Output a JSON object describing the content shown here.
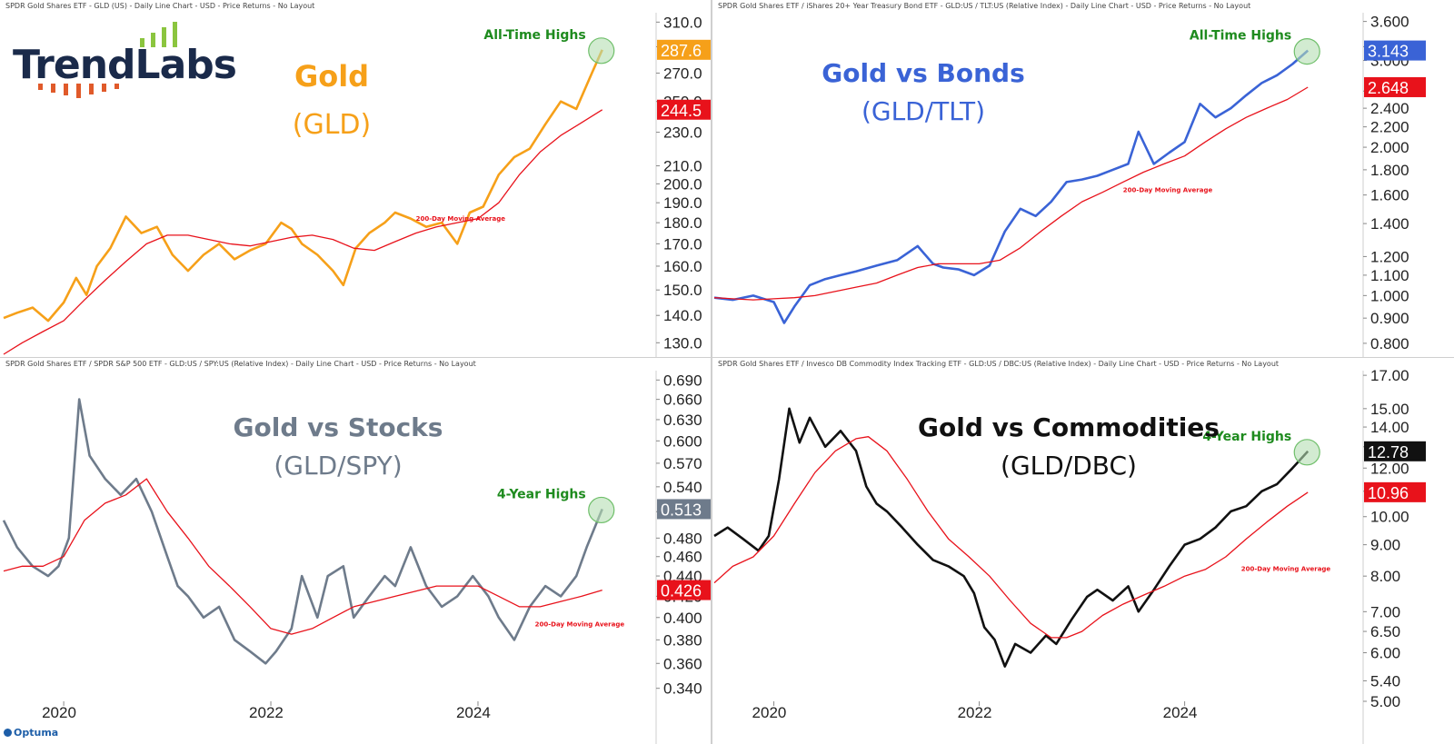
{
  "branding": {
    "logo_text": "TrendLabs",
    "footer_brand": "Optuma"
  },
  "colors": {
    "ma_line": "#e8121b",
    "highlight": "#b4ddb2",
    "highlight_stroke": "#6fbf6a",
    "annot_text": "#1e8b1e"
  },
  "chart_data": [
    {
      "type": "line",
      "header": "SPDR Gold Shares ETF - GLD (US) - Daily Line Chart - USD - Price Returns - No Layout",
      "title": "Gold",
      "subtitle": "(GLD)",
      "title_color": "#f6a019",
      "line_color": "#f6a019",
      "y_scale": "log",
      "ylim": [
        126,
        318
      ],
      "y_ticks": [
        "310.0",
        "290.0",
        "270.0",
        "250.0",
        "230.0",
        "210.0",
        "200.0",
        "190.0",
        "180.0",
        "170.0",
        "160.0",
        "150.0",
        "140.0",
        "130.0"
      ],
      "x_ticks": [
        "2020",
        "2022",
        "2024"
      ],
      "series": [
        {
          "name": "GLD",
          "x": [
            2019.42,
            2019.55,
            2019.7,
            2019.85,
            2020.0,
            2020.12,
            2020.22,
            2020.32,
            2020.45,
            2020.6,
            2020.75,
            2020.9,
            2021.05,
            2021.2,
            2021.35,
            2021.5,
            2021.65,
            2021.8,
            2021.95,
            2022.1,
            2022.2,
            2022.3,
            2022.45,
            2022.6,
            2022.7,
            2022.82,
            2022.95,
            2023.1,
            2023.2,
            2023.35,
            2023.5,
            2023.65,
            2023.8,
            2023.92,
            2024.05,
            2024.2,
            2024.35,
            2024.5,
            2024.65,
            2024.8,
            2024.95,
            2025.1,
            2025.2
          ],
          "values": [
            139,
            141,
            143,
            138,
            145,
            155,
            148,
            160,
            168,
            183,
            175,
            178,
            165,
            158,
            165,
            170,
            163,
            167,
            170,
            180,
            177,
            170,
            165,
            158,
            152,
            168,
            175,
            180,
            185,
            182,
            178,
            180,
            170,
            185,
            188,
            205,
            215,
            220,
            235,
            250,
            245,
            270,
            287.6
          ]
        },
        {
          "name": "200-Day Moving Average",
          "x": [
            2019.42,
            2019.6,
            2019.8,
            2020.0,
            2020.2,
            2020.4,
            2020.6,
            2020.8,
            2021.0,
            2021.2,
            2021.4,
            2021.6,
            2021.8,
            2022.0,
            2022.2,
            2022.4,
            2022.6,
            2022.8,
            2023.0,
            2023.2,
            2023.4,
            2023.6,
            2023.8,
            2024.0,
            2024.2,
            2024.4,
            2024.6,
            2024.8,
            2025.0,
            2025.2
          ],
          "values": [
            126,
            130,
            134,
            138,
            146,
            154,
            162,
            170,
            174,
            174,
            172,
            170,
            169,
            171,
            173,
            174,
            172,
            168,
            167,
            171,
            175,
            178,
            180,
            182,
            190,
            205,
            218,
            228,
            236,
            244.5
          ]
        }
      ],
      "last_value_label": "287.6",
      "last_value_color": "#f6a019",
      "ma_value_label": "244.5",
      "annotation": "All-Time Highs",
      "ma_label": "200-Day Moving Average",
      "ma_label_at": [
        2023.4,
        181
      ]
    },
    {
      "type": "line",
      "header": "SPDR Gold Shares ETF / iShares 20+ Year Treasury Bond ETF - GLD:US / TLT:US (Relative Index) - Daily Line Chart - USD - Price Returns - No Layout",
      "title": "Gold vs Bonds",
      "subtitle": "(GLD/TLT)",
      "title_color": "#3a63d6",
      "line_color": "#3a63d6",
      "y_scale": "log",
      "ylim": [
        0.76,
        3.75
      ],
      "y_ticks": [
        "3.600",
        "3.200",
        "3.000",
        "2.600",
        "2.400",
        "2.200",
        "2.000",
        "1.800",
        "1.600",
        "1.400",
        "1.200",
        "1.100",
        "1.000",
        "0.900",
        "0.800"
      ],
      "x_ticks": [
        "2020",
        "2022",
        "2024"
      ],
      "series": [
        {
          "name": "GLD/TLT",
          "x": [
            2019.42,
            2019.6,
            2019.8,
            2020.0,
            2020.1,
            2020.2,
            2020.35,
            2020.5,
            2020.65,
            2020.8,
            2021.0,
            2021.2,
            2021.4,
            2021.55,
            2021.65,
            2021.8,
            2021.95,
            2022.1,
            2022.25,
            2022.4,
            2022.55,
            2022.7,
            2022.85,
            2023.0,
            2023.15,
            2023.3,
            2023.45,
            2023.55,
            2023.7,
            2023.85,
            2024.0,
            2024.15,
            2024.3,
            2024.45,
            2024.6,
            2024.75,
            2024.9,
            2025.05,
            2025.2
          ],
          "values": [
            0.99,
            0.98,
            1.0,
            0.97,
            0.88,
            0.95,
            1.05,
            1.08,
            1.1,
            1.12,
            1.15,
            1.18,
            1.26,
            1.16,
            1.14,
            1.13,
            1.1,
            1.15,
            1.35,
            1.5,
            1.45,
            1.55,
            1.7,
            1.72,
            1.75,
            1.8,
            1.85,
            2.15,
            1.85,
            1.95,
            2.05,
            2.45,
            2.3,
            2.4,
            2.55,
            2.7,
            2.8,
            2.95,
            3.143
          ]
        },
        {
          "name": "200-Day Moving Average",
          "x": [
            2019.42,
            2019.6,
            2019.8,
            2020.0,
            2020.2,
            2020.4,
            2020.6,
            2020.8,
            2021.0,
            2021.2,
            2021.4,
            2021.6,
            2021.8,
            2022.0,
            2022.2,
            2022.4,
            2022.6,
            2022.8,
            2023.0,
            2023.2,
            2023.4,
            2023.6,
            2023.8,
            2024.0,
            2024.2,
            2024.4,
            2024.6,
            2024.8,
            2025.0,
            2025.2
          ],
          "values": [
            0.99,
            0.985,
            0.98,
            0.985,
            0.99,
            1.0,
            1.02,
            1.04,
            1.06,
            1.1,
            1.14,
            1.16,
            1.16,
            1.16,
            1.18,
            1.25,
            1.35,
            1.45,
            1.55,
            1.62,
            1.7,
            1.78,
            1.85,
            1.92,
            2.05,
            2.18,
            2.3,
            2.4,
            2.5,
            2.648
          ]
        }
      ],
      "last_value_label": "3.143",
      "last_value_color": "#3a63d6",
      "ma_value_label": "2.648",
      "annotation": "All-Time Highs",
      "ma_label": "200-Day Moving Average",
      "ma_label_at": [
        2023.4,
        1.62
      ]
    },
    {
      "type": "line",
      "header": "SPDR Gold Shares ETF / SPDR S&P 500 ETF - GLD:US / SPY:US (Relative Index) - Daily Line Chart - USD - Price Returns - No Layout",
      "title": "Gold vs Stocks",
      "subtitle": "(GLD/SPY)",
      "title_color": "#6e7b8b",
      "line_color": "#6e7b8b",
      "y_scale": "log",
      "ylim": [
        0.33,
        0.705
      ],
      "y_ticks": [
        "0.690",
        "0.660",
        "0.630",
        "0.600",
        "0.570",
        "0.540",
        "0.510",
        "0.480",
        "0.460",
        "0.440",
        "0.420",
        "0.400",
        "0.380",
        "0.360",
        "0.340"
      ],
      "x_ticks": [
        "2020",
        "2022",
        "2024"
      ],
      "series": [
        {
          "name": "GLD/SPY",
          "x": [
            2019.42,
            2019.55,
            2019.7,
            2019.85,
            2019.95,
            2020.05,
            2020.15,
            2020.25,
            2020.4,
            2020.55,
            2020.7,
            2020.85,
            2021.0,
            2021.1,
            2021.2,
            2021.35,
            2021.5,
            2021.65,
            2021.8,
            2021.95,
            2022.05,
            2022.2,
            2022.3,
            2022.45,
            2022.55,
            2022.7,
            2022.8,
            2022.95,
            2023.1,
            2023.2,
            2023.35,
            2023.5,
            2023.65,
            2023.8,
            2023.95,
            2024.1,
            2024.2,
            2024.35,
            2024.5,
            2024.65,
            2024.8,
            2024.95,
            2025.05,
            2025.2
          ],
          "values": [
            0.5,
            0.47,
            0.45,
            0.44,
            0.45,
            0.48,
            0.66,
            0.58,
            0.55,
            0.53,
            0.55,
            0.51,
            0.46,
            0.43,
            0.42,
            0.4,
            0.41,
            0.38,
            0.37,
            0.36,
            0.37,
            0.39,
            0.44,
            0.4,
            0.44,
            0.45,
            0.4,
            0.42,
            0.44,
            0.43,
            0.47,
            0.43,
            0.41,
            0.42,
            0.44,
            0.42,
            0.4,
            0.38,
            0.41,
            0.43,
            0.42,
            0.44,
            0.47,
            0.513
          ]
        },
        {
          "name": "200-Day Moving Average",
          "x": [
            2019.42,
            2019.6,
            2019.8,
            2020.0,
            2020.2,
            2020.4,
            2020.6,
            2020.8,
            2021.0,
            2021.2,
            2021.4,
            2021.6,
            2021.8,
            2022.0,
            2022.2,
            2022.4,
            2022.6,
            2022.8,
            2023.0,
            2023.2,
            2023.4,
            2023.6,
            2023.8,
            2024.0,
            2024.2,
            2024.4,
            2024.6,
            2024.8,
            2025.0,
            2025.2
          ],
          "values": [
            0.445,
            0.45,
            0.45,
            0.46,
            0.5,
            0.52,
            0.53,
            0.55,
            0.51,
            0.48,
            0.45,
            0.43,
            0.41,
            0.39,
            0.385,
            0.39,
            0.4,
            0.41,
            0.415,
            0.42,
            0.425,
            0.43,
            0.43,
            0.43,
            0.42,
            0.41,
            0.41,
            0.415,
            0.42,
            0.426
          ]
        }
      ],
      "last_value_label": "0.513",
      "last_value_color": "#6e7b8b",
      "ma_value_label": "0.426",
      "annotation": "4-Year Highs",
      "ma_label": "200-Day Moving Average",
      "ma_label_at": [
        2024.55,
        0.392
      ]
    },
    {
      "type": "line",
      "header": "SPDR Gold Shares ETF / Invesco DB Commodity Index Tracking ETF - GLD:US / DBC:US (Relative Index) - Daily Line Chart - USD - Price Returns - No Layout",
      "title": "Gold vs Commodities",
      "subtitle": "(GLD/DBC)",
      "title_color": "#111111",
      "line_color": "#111111",
      "y_scale": "log",
      "ylim": [
        5.0,
        17.3
      ],
      "y_ticks": [
        "17.00",
        "15.00",
        "14.00",
        "13.00",
        "12.00",
        "11.00",
        "10.00",
        "9.00",
        "8.00",
        "7.00",
        "6.50",
        "6.00",
        "5.40",
        "5.00"
      ],
      "x_ticks": [
        "2020",
        "2022",
        "2024"
      ],
      "series": [
        {
          "name": "GLD/DBC",
          "x": [
            2019.42,
            2019.55,
            2019.7,
            2019.85,
            2019.95,
            2020.05,
            2020.15,
            2020.25,
            2020.35,
            2020.5,
            2020.65,
            2020.8,
            2020.9,
            2021.0,
            2021.1,
            2021.25,
            2021.4,
            2021.55,
            2021.7,
            2021.85,
            2021.95,
            2022.05,
            2022.15,
            2022.25,
            2022.35,
            2022.5,
            2022.65,
            2022.75,
            2022.9,
            2023.05,
            2023.15,
            2023.3,
            2023.45,
            2023.55,
            2023.7,
            2023.85,
            2024.0,
            2024.15,
            2024.3,
            2024.45,
            2024.6,
            2024.75,
            2024.9,
            2025.05,
            2025.2
          ],
          "values": [
            9.3,
            9.6,
            9.2,
            8.8,
            9.3,
            11.5,
            15.0,
            13.2,
            14.5,
            13.0,
            13.8,
            12.8,
            11.2,
            10.5,
            10.2,
            9.6,
            9.0,
            8.5,
            8.3,
            8.0,
            7.5,
            6.6,
            6.3,
            5.7,
            6.2,
            6.0,
            6.4,
            6.2,
            6.8,
            7.4,
            7.6,
            7.3,
            7.7,
            7.0,
            7.6,
            8.3,
            9.0,
            9.2,
            9.6,
            10.2,
            10.4,
            11.0,
            11.3,
            12.0,
            12.78
          ]
        },
        {
          "name": "200-Day Moving Average",
          "x": [
            2019.42,
            2019.6,
            2019.8,
            2020.0,
            2020.2,
            2020.4,
            2020.6,
            2020.8,
            2020.92,
            2021.1,
            2021.3,
            2021.5,
            2021.7,
            2021.9,
            2022.1,
            2022.3,
            2022.5,
            2022.7,
            2022.85,
            2023.0,
            2023.2,
            2023.4,
            2023.6,
            2023.8,
            2024.0,
            2024.2,
            2024.4,
            2024.6,
            2024.8,
            2025.0,
            2025.2
          ],
          "values": [
            7.8,
            8.3,
            8.6,
            9.3,
            10.5,
            11.8,
            12.8,
            13.4,
            13.5,
            12.8,
            11.5,
            10.2,
            9.2,
            8.6,
            8.0,
            7.3,
            6.7,
            6.35,
            6.35,
            6.5,
            6.9,
            7.2,
            7.45,
            7.7,
            8.0,
            8.2,
            8.6,
            9.2,
            9.8,
            10.4,
            10.96
          ]
        }
      ],
      "last_value_label": "12.78",
      "last_value_color": "#111111",
      "ma_value_label": "10.96",
      "annotation": "4-Year Highs",
      "ma_label": "200-Day Moving Average",
      "ma_label_at": [
        2024.55,
        8.15
      ]
    }
  ]
}
